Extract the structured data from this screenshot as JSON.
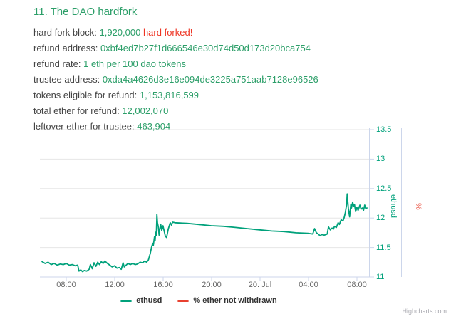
{
  "page": {
    "title": "11. The DAO hardfork",
    "info_lines": [
      {
        "label": "hard fork block: ",
        "value": "1,920,000 ",
        "extra": "hard forked!"
      },
      {
        "label": "refund address: ",
        "value": "0xbf4ed7b27f1d666546e30d74d50d173d20bca754",
        "extra": ""
      },
      {
        "label": "refund rate: ",
        "value": "1 eth per 100 dao tokens",
        "extra": ""
      },
      {
        "label": "trustee address: ",
        "value": "0xda4a4626d3e16e094de3225a751aab7128e96526",
        "extra": ""
      },
      {
        "label": "tokens eligible for refund: ",
        "value": "1,153,816,599",
        "extra": ""
      },
      {
        "label": "total ether for refund: ",
        "value": "12,002,070",
        "extra": ""
      },
      {
        "label": "leftover ether for trustee: ",
        "value": "463,904",
        "extra": ""
      }
    ]
  },
  "colors": {
    "text_green": "#2b9e68",
    "text_red": "#ee3524",
    "series_teal": "#00a17b",
    "series_red": "#e8402f",
    "grid": "#e6e6e6",
    "axis_line": "#ccd6eb",
    "tick_text": "#666666"
  },
  "chart_data": {
    "type": "line",
    "title": "",
    "x_axis": {
      "type": "datetime",
      "tick_labels": [
        "08:00",
        "12:00",
        "16:00",
        "20:00",
        "20. Jul",
        "04:00",
        "08:00"
      ],
      "tick_interval_hours": 4,
      "range_hours_since_0600_jul19": [
        -0.2,
        27.2
      ],
      "grid": false
    },
    "y_axis": {
      "title": "ethusd",
      "side": "right",
      "tick_labels": [
        "13.5",
        "13",
        "12.5",
        "12",
        "11.5",
        "11"
      ],
      "min": 11,
      "max": 13.5,
      "grid": true
    },
    "y2_axis": {
      "title": "%",
      "side": "right",
      "tick_labels": [],
      "note": "secondary axis for % ether not withdrawn, no visible ticks"
    },
    "legend_position": "bottom-center",
    "credits": "Highcharts.com",
    "series": [
      {
        "name": "ethusd",
        "color": "#00a17b",
        "x_unit": "hours_since_jul19_0600",
        "points": [
          [
            0,
            11.26
          ],
          [
            0.25,
            11.23
          ],
          [
            0.5,
            11.25
          ],
          [
            0.75,
            11.21
          ],
          [
            1,
            11.23
          ],
          [
            1.25,
            11.2
          ],
          [
            1.5,
            11.22
          ],
          [
            1.75,
            11.21
          ],
          [
            2,
            11.23
          ],
          [
            2.25,
            11.2
          ],
          [
            2.5,
            11.21
          ],
          [
            2.75,
            11.19
          ],
          [
            2.95,
            11.2
          ],
          [
            3.05,
            11.1
          ],
          [
            3.2,
            11.12
          ],
          [
            3.35,
            11.09
          ],
          [
            3.5,
            11.11
          ],
          [
            3.7,
            11.1
          ],
          [
            3.9,
            11.13
          ],
          [
            4.0,
            11.21
          ],
          [
            4.15,
            11.14
          ],
          [
            4.3,
            11.24
          ],
          [
            4.45,
            11.18
          ],
          [
            4.6,
            11.25
          ],
          [
            4.75,
            11.21
          ],
          [
            4.9,
            11.26
          ],
          [
            5.05,
            11.23
          ],
          [
            5.2,
            11.27
          ],
          [
            5.4,
            11.23
          ],
          [
            5.6,
            11.2
          ],
          [
            5.8,
            11.17
          ],
          [
            6.0,
            11.19
          ],
          [
            6.2,
            11.15
          ],
          [
            6.4,
            11.16
          ],
          [
            6.55,
            11.13
          ],
          [
            6.7,
            11.24
          ],
          [
            6.8,
            11.17
          ],
          [
            6.95,
            11.2
          ],
          [
            7.1,
            11.23
          ],
          [
            7.3,
            11.21
          ],
          [
            7.5,
            11.23
          ],
          [
            7.7,
            11.21
          ],
          [
            7.9,
            11.22
          ],
          [
            8.1,
            11.25
          ],
          [
            8.3,
            11.24
          ],
          [
            8.5,
            11.27
          ],
          [
            8.65,
            11.25
          ],
          [
            8.8,
            11.29
          ],
          [
            8.95,
            11.4
          ],
          [
            9.05,
            11.5
          ],
          [
            9.15,
            11.57
          ],
          [
            9.2,
            11.53
          ],
          [
            9.3,
            11.68
          ],
          [
            9.35,
            11.62
          ],
          [
            9.4,
            11.76
          ],
          [
            9.45,
            11.71
          ],
          [
            9.5,
            12.06
          ],
          [
            9.55,
            11.92
          ],
          [
            9.62,
            11.85
          ],
          [
            9.68,
            11.71
          ],
          [
            9.75,
            11.82
          ],
          [
            9.82,
            11.89
          ],
          [
            9.9,
            11.79
          ],
          [
            10.0,
            11.87
          ],
          [
            10.1,
            11.78
          ],
          [
            10.2,
            11.69
          ],
          [
            10.3,
            11.67
          ],
          [
            10.45,
            11.82
          ],
          [
            10.6,
            11.92
          ],
          [
            10.7,
            11.88
          ],
          [
            10.8,
            11.93
          ],
          [
            11.0,
            11.92
          ],
          [
            12,
            11.91
          ],
          [
            13,
            11.89
          ],
          [
            14,
            11.87
          ],
          [
            15,
            11.86
          ],
          [
            16,
            11.84
          ],
          [
            17,
            11.82
          ],
          [
            18,
            11.8
          ],
          [
            19,
            11.78
          ],
          [
            20,
            11.77
          ],
          [
            21,
            11.75
          ],
          [
            22,
            11.74
          ],
          [
            22.4,
            11.73
          ],
          [
            22.55,
            11.82
          ],
          [
            22.7,
            11.75
          ],
          [
            22.85,
            11.73
          ],
          [
            23.0,
            11.7
          ],
          [
            23.15,
            11.72
          ],
          [
            23.35,
            11.71
          ],
          [
            23.5,
            11.72
          ],
          [
            23.6,
            11.73
          ],
          [
            23.7,
            11.85
          ],
          [
            23.85,
            11.8
          ],
          [
            24.0,
            11.83
          ],
          [
            24.1,
            11.81
          ],
          [
            24.2,
            11.86
          ],
          [
            24.35,
            11.84
          ],
          [
            24.5,
            11.92
          ],
          [
            24.6,
            11.89
          ],
          [
            24.75,
            11.97
          ],
          [
            24.9,
            11.95
          ],
          [
            25.0,
            12.01
          ],
          [
            25.1,
            12.1
          ],
          [
            25.2,
            12.23
          ],
          [
            25.25,
            12.41
          ],
          [
            25.35,
            12.15
          ],
          [
            25.45,
            12.02
          ],
          [
            25.55,
            12.23
          ],
          [
            25.6,
            12.17
          ],
          [
            25.7,
            12.27
          ],
          [
            25.78,
            12.2
          ],
          [
            25.85,
            12.23
          ],
          [
            25.95,
            12.11
          ],
          [
            26.05,
            12.18
          ],
          [
            26.15,
            12.13
          ],
          [
            26.3,
            12.22
          ],
          [
            26.4,
            12.15
          ],
          [
            26.5,
            12.17
          ],
          [
            26.6,
            12.13
          ],
          [
            26.7,
            12.22
          ],
          [
            26.78,
            12.16
          ],
          [
            26.88,
            12.17
          ]
        ]
      },
      {
        "name": "% ether not withdrawn",
        "color": "#e8402f",
        "points": [],
        "visible_in_plot": false
      }
    ]
  }
}
